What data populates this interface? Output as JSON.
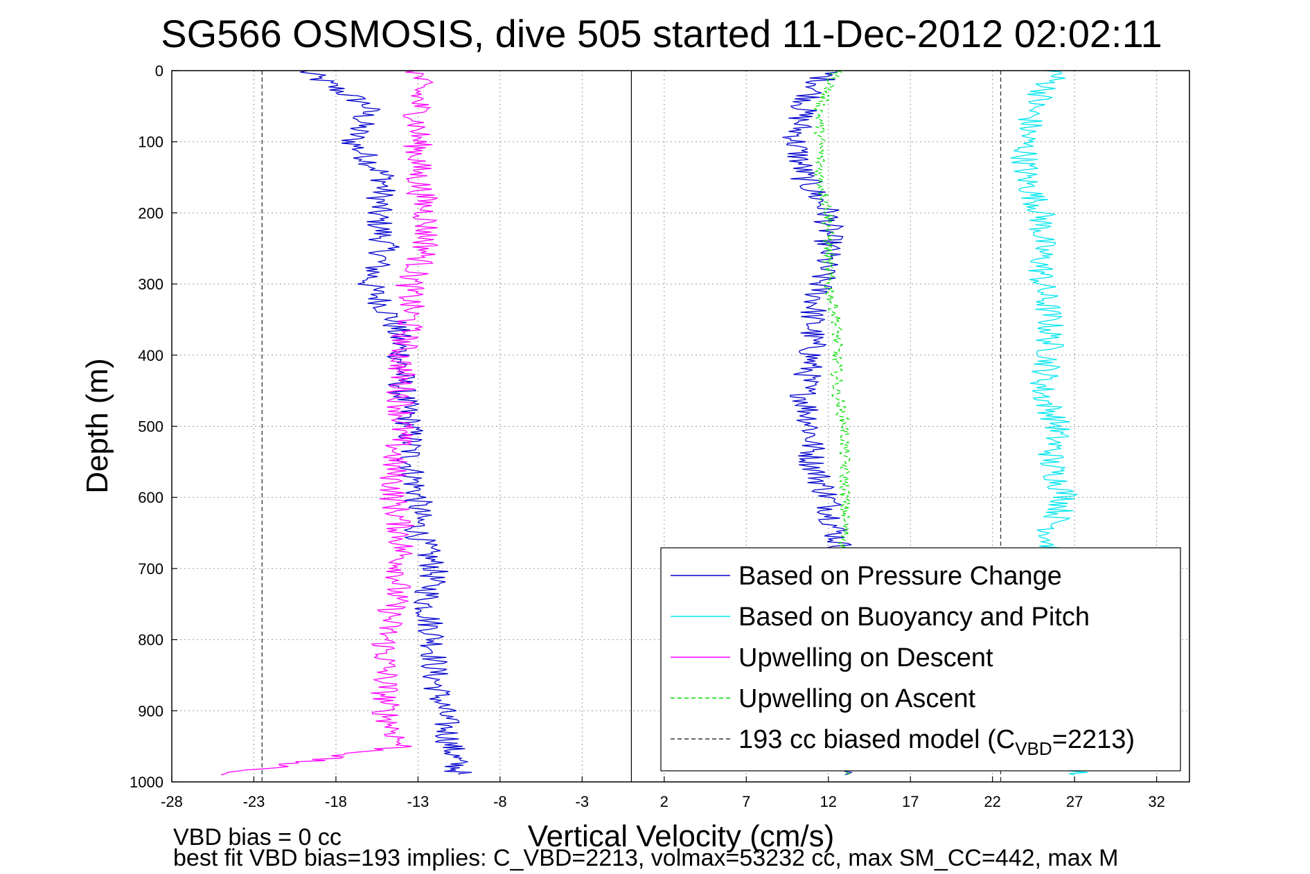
{
  "chart_data": {
    "type": "line",
    "title": "SG566 OSMOSIS, dive 505 started 11-Dec-2012 02:02:11",
    "xlabel": "Vertical Velocity (cm/s)",
    "ylabel": "Depth (m)",
    "xlim": [
      -28,
      34
    ],
    "ylim": [
      0,
      1000
    ],
    "y_reversed": true,
    "grid": true,
    "legend_position": "bottom-right",
    "xticks": [
      "-28",
      "-23",
      "-18",
      "-13",
      "-8",
      "-3",
      "2",
      "7",
      "12",
      "17",
      "22",
      "27",
      "32"
    ],
    "yticks": [
      "0",
      "100",
      "200",
      "300",
      "400",
      "500",
      "600",
      "700",
      "800",
      "900",
      "1000"
    ],
    "series": [
      {
        "name": "Based on Pressure Change",
        "color": "#0000cc",
        "style": "solid",
        "depth": [
          0,
          50,
          100,
          150,
          200,
          250,
          300,
          350,
          400,
          450,
          500,
          550,
          600,
          650,
          700,
          750,
          800,
          850,
          900,
          950,
          990
        ],
        "segments": [
          {
            "phase": "descent",
            "values": [
              -20,
              -16,
              -17,
              -15,
              -15.5,
              -15,
              -16,
              -14.5,
              -14,
              -14,
              -13.5,
              -13.5,
              -13,
              -13,
              -12,
              -12.5,
              -12,
              -12,
              -11.5,
              -11,
              -10.5
            ]
          },
          {
            "phase": "ascent",
            "values": [
              12,
              10.5,
              10,
              10.5,
              12,
              12,
              11.5,
              11,
              11,
              10.5,
              11,
              11,
              12,
              12.5,
              13,
              13,
              13,
              13,
              13,
              13,
              13
            ]
          }
        ]
      },
      {
        "name": "Based on Buoyancy and Pitch",
        "color": "#00e5ee",
        "style": "solid",
        "depth": [
          0,
          50,
          100,
          150,
          200,
          250,
          300,
          350,
          400,
          450,
          500,
          550,
          600,
          650,
          700,
          750,
          800,
          850,
          900,
          950,
          990
        ],
        "segments": [
          {
            "phase": "ascent",
            "values": [
              26,
              24.5,
              24,
              24,
              25,
              25,
              25,
              25.5,
              25.5,
              25,
              26,
              25.5,
              26.5,
              25.5,
              25.5,
              26,
              26,
              26,
              26,
              26,
              27
            ]
          }
        ]
      },
      {
        "name": "Upwelling on Descent",
        "color": "#ff00ff",
        "style": "solid",
        "depth": [
          0,
          50,
          100,
          150,
          200,
          250,
          300,
          350,
          400,
          450,
          500,
          550,
          600,
          650,
          700,
          750,
          800,
          850,
          900,
          950,
          990
        ],
        "segments": [
          {
            "phase": "descent",
            "values": [
              -13,
              -13,
              -13,
              -13,
              -12.5,
              -12.5,
              -13.5,
              -13.5,
              -14,
              -14,
              -14,
              -14.5,
              -14.5,
              -14,
              -14,
              -14.5,
              -15,
              -15,
              -15,
              -14,
              -25
            ]
          }
        ]
      },
      {
        "name": "Upwelling on Ascent",
        "color": "#00dd00",
        "style": "dashed",
        "depth": [
          0,
          50,
          100,
          150,
          200,
          250,
          300,
          350,
          400,
          450,
          500,
          550,
          600,
          650,
          700,
          750,
          800,
          850,
          900,
          950,
          990
        ],
        "segments": [
          {
            "phase": "ascent",
            "values": [
              12.5,
              11.5,
              11.5,
              11.5,
              12,
              12,
              12,
              12.5,
              12.5,
              12.5,
              13,
              13,
              13,
              13,
              13,
              13,
              13,
              13,
              13,
              13,
              13
            ]
          }
        ]
      },
      {
        "name_prefix": "193 cc biased model (C",
        "name_subscript": "VBD",
        "name_suffix": "=2213)",
        "color": "#333333",
        "style": "dashed",
        "segments": [
          {
            "phase": "descent",
            "x": -22.5,
            "depth": [
              0,
              1000
            ]
          },
          {
            "phase": "ascent",
            "x": 22.5,
            "depth": [
              0,
              1000
            ]
          }
        ]
      }
    ],
    "reference_line": {
      "x": 0,
      "color": "#000000"
    }
  },
  "footer": {
    "line1": "VBD bias = 0 cc",
    "line2": "best fit VBD bias=193 implies: C_VBD=2213, volmax=53232 cc, max SM_CC=442, max M"
  }
}
